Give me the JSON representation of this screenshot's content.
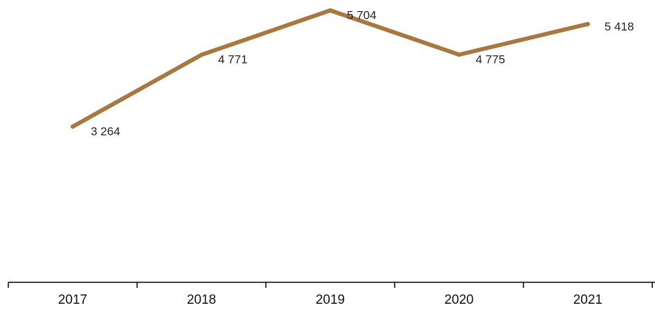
{
  "chart_data": {
    "type": "line",
    "categories": [
      "2017",
      "2018",
      "2019",
      "2020",
      "2021"
    ],
    "series": [
      {
        "values": [
          3264,
          4771,
          5704,
          4775,
          5418
        ]
      }
    ],
    "data_labels": [
      "3 264",
      "4 771",
      "5 704",
      "4 775",
      "5 418"
    ],
    "title": "",
    "xlabel": "",
    "ylabel": "",
    "ylim": [
      0,
      6000
    ],
    "y_axis_visible": false,
    "grid": false,
    "legend": "none",
    "line_color": "#a87840"
  }
}
